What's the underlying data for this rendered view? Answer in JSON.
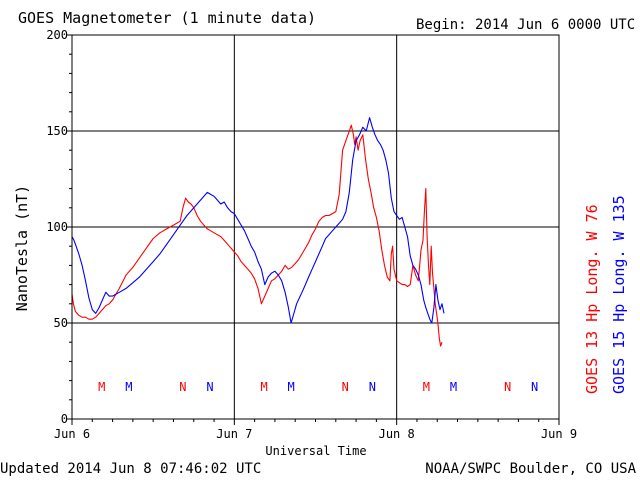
{
  "header": {
    "title": "GOES Magnetometer (1 minute data)",
    "begin": "Begin:  2014 Jun 6 0000 UTC"
  },
  "footer": {
    "updated": "Updated 2014 Jun  8 07:46:02 UTC",
    "credit": "NOAA/SWPC Boulder, CO USA"
  },
  "colors": {
    "goes13": "#ff0000",
    "goes15": "#0000ff",
    "grid": "#000000"
  },
  "chart_data": {
    "type": "line",
    "title": "GOES Magnetometer (1 minute data)",
    "xlabel": "Universal Time",
    "ylabel": "NanoTesla (nT)",
    "xlim": [
      0,
      72
    ],
    "ylim": [
      0,
      200
    ],
    "grid": true,
    "x_ticks": [
      {
        "x": 0,
        "label": "Jun 6"
      },
      {
        "x": 24,
        "label": "Jun 7"
      },
      {
        "x": 48,
        "label": "Jun 8"
      },
      {
        "x": 72,
        "label": "Jun 9"
      }
    ],
    "y_ticks": [
      0,
      50,
      100,
      150,
      200
    ],
    "legend": [
      {
        "label": "GOES 13 Hp  Long. W 76",
        "color": "#ff0000"
      },
      {
        "label": "GOES 15 Hp  Long. W 135",
        "color": "#0000ff"
      }
    ],
    "markers": [
      {
        "x": 4.4,
        "label": "M",
        "color": "#ff0000"
      },
      {
        "x": 8.4,
        "label": "M",
        "color": "#0000ff"
      },
      {
        "x": 16.4,
        "label": "N",
        "color": "#ff0000"
      },
      {
        "x": 20.4,
        "label": "N",
        "color": "#0000ff"
      },
      {
        "x": 28.4,
        "label": "M",
        "color": "#ff0000"
      },
      {
        "x": 32.4,
        "label": "M",
        "color": "#0000ff"
      },
      {
        "x": 40.4,
        "label": "N",
        "color": "#ff0000"
      },
      {
        "x": 44.4,
        "label": "N",
        "color": "#0000ff"
      },
      {
        "x": 52.4,
        "label": "M",
        "color": "#ff0000"
      },
      {
        "x": 56.4,
        "label": "M",
        "color": "#0000ff"
      },
      {
        "x": 64.4,
        "label": "N",
        "color": "#ff0000"
      },
      {
        "x": 68.4,
        "label": "N",
        "color": "#0000ff"
      }
    ],
    "series": [
      {
        "name": "GOES 13 Hp  Long. W 76",
        "color": "#ff0000",
        "x": [
          0,
          0.2,
          0.5,
          1.0,
          1.5,
          2.0,
          2.5,
          3.0,
          3.5,
          4.0,
          4.5,
          5.0,
          5.5,
          6.0,
          7.0,
          8.0,
          9.0,
          10.0,
          11.0,
          12.0,
          13.0,
          14.0,
          15.0,
          16.0,
          16.4,
          16.8,
          17.2,
          17.6,
          18.0,
          18.5,
          19.0,
          19.5,
          20.0,
          20.5,
          21.0,
          21.5,
          22.0,
          22.5,
          23.0,
          23.5,
          24.0,
          24.5,
          25.0,
          25.5,
          26.0,
          26.5,
          27.0,
          27.5,
          28.0,
          28.5,
          29.0,
          29.5,
          30.0,
          30.5,
          31.0,
          31.5,
          32.0,
          32.5,
          33.0,
          33.5,
          34.0,
          34.5,
          35.0,
          35.5,
          36.0,
          36.5,
          37.0,
          37.5,
          38.0,
          38.5,
          39.0,
          39.5,
          40.0,
          40.5,
          41.0,
          41.3,
          41.6,
          41.8,
          42.0,
          42.3,
          42.6,
          43.0,
          43.4,
          43.8,
          44.2,
          44.6,
          45.0,
          45.4,
          45.8,
          46.2,
          46.6,
          47.0,
          47.2,
          47.4,
          47.6,
          48.0,
          48.4,
          48.8,
          49.2,
          49.6,
          50.0,
          50.4,
          50.8,
          51.2,
          51.6,
          51.9,
          52.1,
          52.3,
          52.5,
          52.7,
          52.9,
          53.1,
          53.3,
          53.5,
          53.7,
          53.9,
          54.1,
          54.3,
          54.5,
          54.7
        ],
        "y": [
          65,
          60,
          56,
          54,
          53,
          53,
          52,
          52,
          53,
          55,
          57,
          59,
          60,
          62,
          68,
          75,
          79,
          84,
          89,
          94,
          97,
          99,
          101,
          103,
          110,
          115,
          113,
          112,
          110,
          106,
          103,
          101,
          99,
          98,
          97,
          96,
          95,
          93,
          91,
          89,
          87,
          85,
          82,
          80,
          78,
          76,
          73,
          68,
          60,
          64,
          68,
          72,
          73,
          75,
          77,
          80,
          78,
          79,
          81,
          83,
          86,
          89,
          92,
          96,
          99,
          103,
          105,
          106,
          106,
          107,
          108,
          117,
          140,
          145,
          150,
          153,
          148,
          143,
          147,
          140,
          145,
          148,
          135,
          125,
          118,
          110,
          105,
          98,
          88,
          80,
          74,
          72,
          86,
          90,
          78,
          72,
          71,
          70,
          70,
          69,
          70,
          80,
          75,
          72,
          88,
          93,
          108,
          120,
          95,
          80,
          70,
          90,
          76,
          68,
          60,
          55,
          50,
          42,
          38,
          40
        ]
      },
      {
        "name": "GOES 15 Hp  Long. W 135",
        "color": "#0000ff",
        "x": [
          0,
          0.3,
          0.6,
          1.0,
          1.5,
          2.0,
          2.5,
          3.0,
          3.5,
          4.0,
          4.5,
          5.0,
          5.5,
          6.0,
          7.0,
          8.0,
          9.0,
          10.0,
          11.0,
          12.0,
          13.0,
          14.0,
          15.0,
          16.0,
          17.0,
          18.0,
          18.5,
          19.0,
          19.5,
          20.0,
          20.5,
          21.0,
          21.5,
          22.0,
          22.5,
          23.0,
          23.5,
          24.0,
          24.5,
          25.0,
          25.5,
          26.0,
          26.5,
          27.0,
          27.5,
          28.0,
          28.5,
          29.0,
          29.5,
          30.0,
          30.5,
          31.0,
          31.5,
          32.0,
          32.4,
          32.8,
          33.2,
          33.6,
          34.0,
          34.5,
          35.0,
          35.5,
          36.0,
          36.5,
          37.0,
          37.5,
          38.0,
          38.5,
          39.0,
          39.5,
          40.0,
          40.5,
          41.0,
          41.5,
          42.0,
          42.5,
          43.0,
          43.5,
          44.0,
          44.4,
          44.8,
          45.2,
          45.6,
          46.0,
          46.4,
          46.8,
          47.2,
          47.6,
          48.0,
          48.4,
          48.8,
          49.2,
          49.6,
          50.0,
          50.4,
          50.8,
          51.2,
          51.6,
          52.0,
          52.3,
          52.6,
          52.9,
          53.2,
          53.5,
          53.8,
          54.1,
          54.4,
          54.7,
          55.0
        ],
        "y": [
          95,
          93,
          90,
          86,
          80,
          72,
          63,
          57,
          55,
          58,
          62,
          66,
          64,
          64,
          66,
          68,
          71,
          74,
          78,
          82,
          86,
          91,
          96,
          101,
          106,
          110,
          112,
          114,
          116,
          118,
          117,
          116,
          114,
          112,
          113,
          110,
          108,
          107,
          104,
          101,
          98,
          94,
          90,
          87,
          82,
          78,
          70,
          74,
          76,
          77,
          75,
          72,
          66,
          58,
          50,
          55,
          60,
          63,
          66,
          70,
          74,
          78,
          82,
          86,
          90,
          94,
          96,
          98,
          100,
          102,
          104,
          108,
          118,
          135,
          145,
          148,
          152,
          150,
          157,
          152,
          148,
          145,
          143,
          140,
          135,
          128,
          115,
          108,
          106,
          104,
          105,
          100,
          95,
          85,
          80,
          78,
          75,
          70,
          62,
          58,
          55,
          52,
          50,
          58,
          70,
          62,
          57,
          60,
          55
        ]
      }
    ]
  }
}
